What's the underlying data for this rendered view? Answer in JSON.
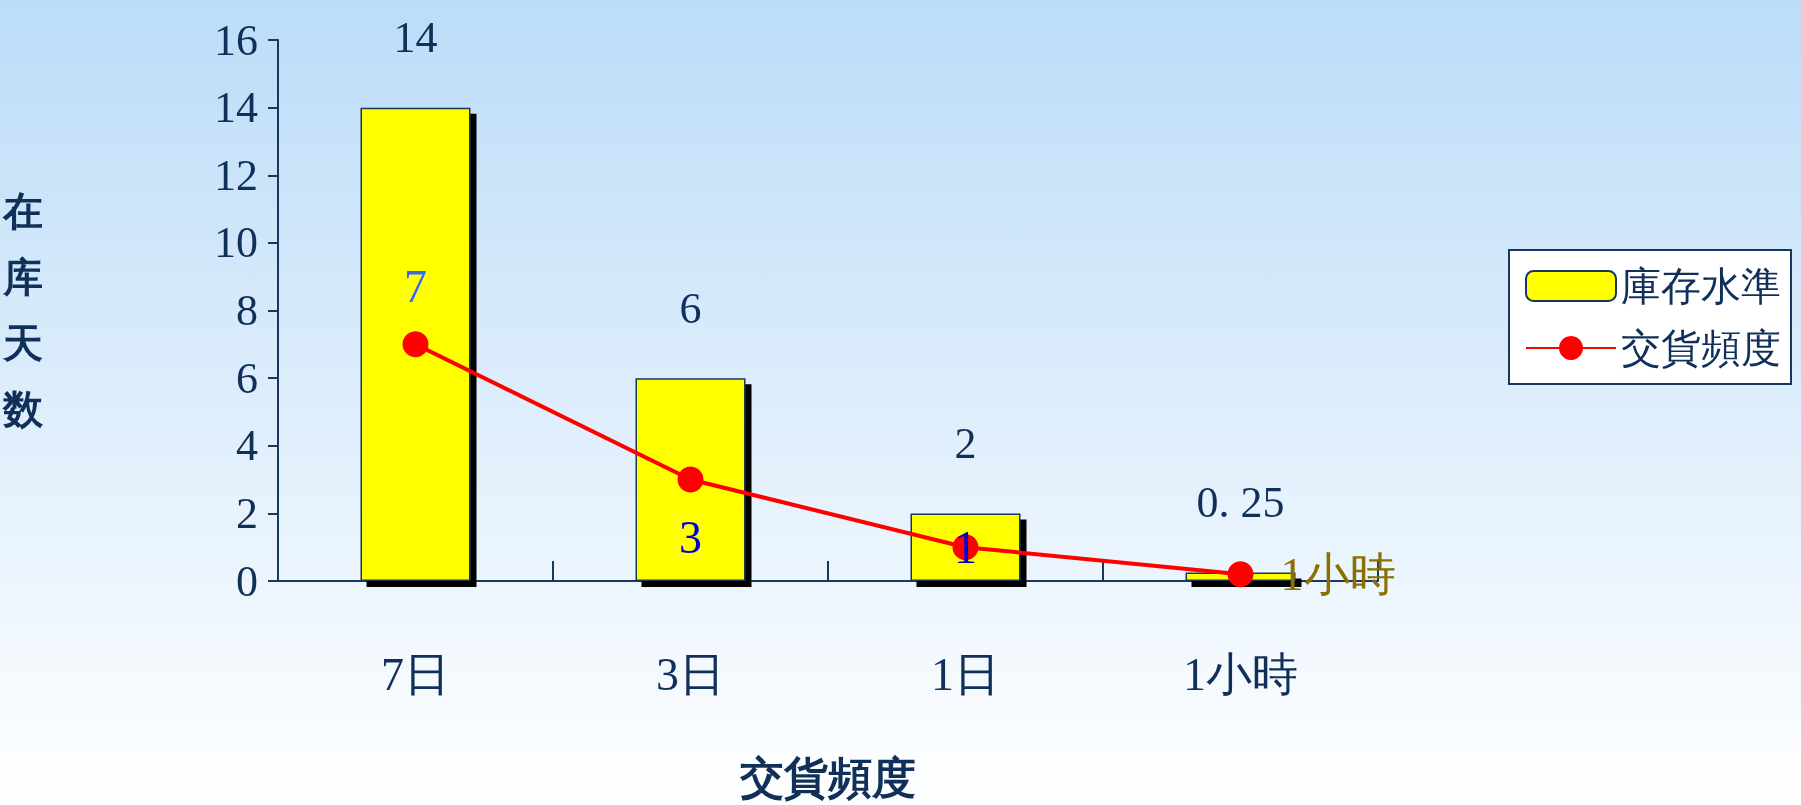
{
  "chart_data": {
    "type": "bar",
    "xlabel": "交貨頻度",
    "ylabel": "在库天数",
    "categories": [
      "7日",
      "3日",
      "1日",
      "1小時"
    ],
    "series": [
      {
        "name": "庫存水準",
        "color": "#ffff00",
        "values": [
          14,
          6,
          2,
          0.25
        ],
        "value_labels": [
          "14",
          "6",
          "2",
          "0. 25"
        ]
      },
      {
        "name": "交貨頻度",
        "type": "line",
        "color": "#ff0000",
        "values": [
          7,
          3,
          1,
          0.2
        ],
        "value_labels": [
          "7",
          "3",
          "1",
          null
        ]
      }
    ],
    "annotations": [
      {
        "text": "1小時",
        "x": "1小時",
        "y": 0.2
      }
    ],
    "ylim": [
      0,
      16
    ],
    "yticks": [
      0,
      2,
      4,
      6,
      8,
      10,
      12,
      14,
      16
    ],
    "grid": false,
    "legend": "right",
    "marker": "circle",
    "line_style": "solid"
  }
}
